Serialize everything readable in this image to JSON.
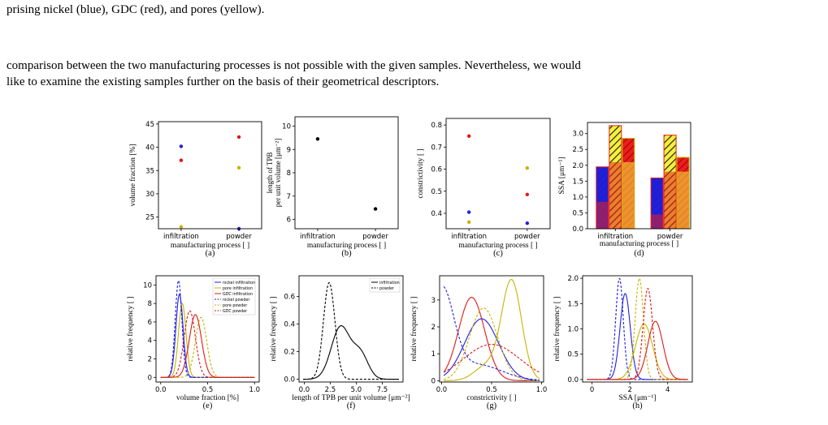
{
  "text": {
    "line1": "prising nickel (blue), GDC (red), and pores (yellow).",
    "line2": "comparison between the two manufacturing processes is not possible with the given samples. Nevertheless, we would",
    "line3": "like to examine the existing samples further on the basis of their geometrical descriptors."
  },
  "colors": {
    "nickel": "#1f1fe6",
    "pore": "#c8b400",
    "gdc": "#e01818",
    "black": "#000000",
    "bar_yellow": "#f5f03c",
    "bar_blue": "#2020d8",
    "bar_red": "#e8201e"
  },
  "chart_data": [
    {
      "id": "a",
      "type": "scatter",
      "caption": "(a)",
      "categories": [
        "infiltration",
        "powder"
      ],
      "xlabel": "manufacturing process [ ]",
      "ylabel": "volume fraction [%]",
      "ylim": [
        22.5,
        45.5
      ],
      "yticks": [
        25,
        30,
        35,
        40,
        45
      ],
      "series": [
        {
          "name": "nickel",
          "color": "#1f1fe6",
          "values": [
            40.2,
            22.5
          ]
        },
        {
          "name": "GDC",
          "color": "#e01818",
          "values": [
            37.2,
            42.2
          ]
        },
        {
          "name": "pores",
          "color": "#c8b400",
          "values": [
            22.9,
            35.6
          ]
        }
      ]
    },
    {
      "id": "b",
      "type": "scatter",
      "caption": "(b)",
      "categories": [
        "infiltration",
        "powder"
      ],
      "xlabel": "manufacturing process [ ]",
      "ylabel": "length of TPB per unit volume [μm⁻²]",
      "ylim": [
        5.6,
        10.4
      ],
      "yticks": [
        6,
        7,
        8,
        9,
        10
      ],
      "series": [
        {
          "color": "#000000",
          "values": [
            9.45,
            6.45
          ]
        }
      ]
    },
    {
      "id": "c",
      "type": "scatter",
      "caption": "(c)",
      "categories": [
        "infiltration",
        "powder"
      ],
      "xlabel": "manufacturing process [ ]",
      "ylabel": "constrictivity [ ]",
      "ylim": [
        0.33,
        0.83
      ],
      "yticks": [
        0.4,
        0.5,
        0.6,
        0.7,
        0.8
      ],
      "series": [
        {
          "color": "#e01818",
          "values": [
            0.75,
            0.485
          ]
        },
        {
          "color": "#1f1fe6",
          "values": [
            0.405,
            0.355
          ]
        },
        {
          "color": "#c8b400",
          "values": [
            0.36,
            0.605
          ]
        }
      ]
    },
    {
      "id": "d",
      "type": "bar",
      "caption": "(d)",
      "categories": [
        "infiltration",
        "powder"
      ],
      "xlabel": "manufacturing process [ ]",
      "ylabel": "SSA [μm⁻¹]",
      "ylim": [
        0,
        3.35
      ],
      "yticks": [
        0.0,
        0.5,
        1.0,
        1.5,
        2.0,
        2.5,
        3.0
      ],
      "bars": [
        {
          "cat": 0,
          "slot": 0,
          "total": 1.95,
          "inner": 0.85,
          "hatch": "#2020d8",
          "innerColor": "#e8201e"
        },
        {
          "cat": 0,
          "slot": 1,
          "total": 3.25,
          "inner": 2.1,
          "hatch": "#f5f03c",
          "innerColor": "#e8201e"
        },
        {
          "cat": 0,
          "slot": 2,
          "total": 2.85,
          "inner": 2.1,
          "hatch": "#e8201e",
          "innerColor": "#f5f03c"
        },
        {
          "cat": 1,
          "slot": 0,
          "total": 1.6,
          "inner": 0.45,
          "hatch": "#2020d8",
          "innerColor": "#e8201e"
        },
        {
          "cat": 1,
          "slot": 1,
          "total": 2.95,
          "inner": 1.8,
          "hatch": "#f5f03c",
          "innerColor": "#e8201e"
        },
        {
          "cat": 1,
          "slot": 2,
          "total": 2.25,
          "inner": 1.8,
          "hatch": "#e8201e",
          "innerColor": "#f5f03c"
        }
      ]
    },
    {
      "id": "e",
      "type": "line",
      "caption": "(e)",
      "xlabel": "volume fraction [%]",
      "ylabel": "relative frequency [ ]",
      "xlim": [
        -0.05,
        1.05
      ],
      "ylim": [
        -0.5,
        11
      ],
      "xticks": [
        0.0,
        0.5,
        1.0
      ],
      "yticks": [
        0,
        2,
        4,
        6,
        8,
        10
      ],
      "series": [
        {
          "name": "nickel infiltration",
          "color": "#1f1fe6",
          "dash": false,
          "peaks": [
            {
              "mu": 0.2,
              "sigma": 0.038,
              "amp": 9.0
            }
          ]
        },
        {
          "name": "pore infiltration",
          "color": "#c8b400",
          "dash": false,
          "peaks": [
            {
              "mu": 0.23,
              "sigma": 0.04,
              "amp": 8.0
            }
          ]
        },
        {
          "name": "GDC infiltration",
          "color": "#e01818",
          "dash": false,
          "peaks": [
            {
              "mu": 0.37,
              "sigma": 0.065,
              "amp": 6.8
            }
          ]
        },
        {
          "name": "nickel powder",
          "color": "#1f1fe6",
          "dash": true,
          "peaks": [
            {
              "mu": 0.19,
              "sigma": 0.035,
              "amp": 10.5
            }
          ]
        },
        {
          "name": "pore powder",
          "color": "#c8b400",
          "dash": true,
          "peaks": [
            {
              "mu": 0.43,
              "sigma": 0.06,
              "amp": 6.5
            }
          ]
        },
        {
          "name": "GDC powder",
          "color": "#e01818",
          "dash": true,
          "peaks": [
            {
              "mu": 0.31,
              "sigma": 0.06,
              "amp": 7.2
            }
          ]
        }
      ]
    },
    {
      "id": "f",
      "type": "line",
      "caption": "(f)",
      "xlabel": "length of TPB per unit volume [μm⁻²]",
      "ylabel": "relative frequency [ ]",
      "xlim": [
        -0.5,
        9.5
      ],
      "ylim": [
        -0.02,
        0.75
      ],
      "xticks": [
        0.0,
        2.5,
        5.0,
        7.5
      ],
      "yticks": [
        0.0,
        0.2,
        0.4,
        0.6
      ],
      "series": [
        {
          "name": "infiltration",
          "color": "#000000",
          "dash": false,
          "peaks": [
            {
              "mu": 3.5,
              "sigma": 0.9,
              "amp": 0.38
            },
            {
              "mu": 5.4,
              "sigma": 0.75,
              "amp": 0.18
            }
          ]
        },
        {
          "name": "powder",
          "color": "#000000",
          "dash": true,
          "peaks": [
            {
              "mu": 2.4,
              "sigma": 0.55,
              "amp": 0.7
            }
          ]
        }
      ]
    },
    {
      "id": "g",
      "type": "line",
      "caption": "(g)",
      "xlabel": "constrictivity [ ]",
      "ylabel": "relative frequency [ ]",
      "xlim": [
        -0.02,
        1.02
      ],
      "ylim": [
        -0.05,
        3.9
      ],
      "xticks": [
        0.0,
        0.5,
        1.0
      ],
      "yticks": [
        0,
        1,
        2,
        3
      ],
      "series": [
        {
          "color": "#e01818",
          "dash": false,
          "peaks": [
            {
              "mu": 0.3,
              "sigma": 0.13,
              "amp": 3.1
            }
          ]
        },
        {
          "color": "#1f1fe6",
          "dash": false,
          "peaks": [
            {
              "mu": 0.4,
              "sigma": 0.17,
              "amp": 2.3
            }
          ]
        },
        {
          "color": "#c8b400",
          "dash": false,
          "peaks": [
            {
              "mu": 0.7,
              "sigma": 0.1,
              "amp": 3.7
            },
            {
              "mu": 0.45,
              "sigma": 0.12,
              "amp": 0.55
            }
          ]
        },
        {
          "color": "#1f1fe6",
          "dash": true,
          "peaks": [
            {
              "mu": 0.0,
              "sigma": 0.12,
              "amp": 3.3
            },
            {
              "mu": 0.35,
              "sigma": 0.25,
              "amp": 0.6
            }
          ]
        },
        {
          "color": "#c8b400",
          "dash": true,
          "peaks": [
            {
              "mu": 0.42,
              "sigma": 0.14,
              "amp": 2.7
            }
          ]
        },
        {
          "color": "#e01818",
          "dash": true,
          "peaks": [
            {
              "mu": 0.5,
              "sigma": 0.28,
              "amp": 1.35
            }
          ]
        }
      ]
    },
    {
      "id": "h",
      "type": "line",
      "caption": "(h)",
      "xlabel": "SSA [μm⁻¹]",
      "ylabel": "relative frequency [ ]",
      "xlim": [
        -0.5,
        5.3
      ],
      "ylim": [
        -0.05,
        2.05
      ],
      "xticks": [
        0,
        2,
        4
      ],
      "yticks": [
        0.0,
        0.5,
        1.0,
        1.5,
        2.0
      ],
      "series": [
        {
          "color": "#1f1fe6",
          "dash": true,
          "peaks": [
            {
              "mu": 1.45,
              "sigma": 0.2,
              "amp": 2.0
            }
          ]
        },
        {
          "color": "#1f1fe6",
          "dash": false,
          "peaks": [
            {
              "mu": 1.75,
              "sigma": 0.27,
              "amp": 1.7
            }
          ]
        },
        {
          "color": "#c8b400",
          "dash": true,
          "peaks": [
            {
              "mu": 2.5,
              "sigma": 0.22,
              "amp": 2.0
            }
          ]
        },
        {
          "color": "#c8b400",
          "dash": false,
          "peaks": [
            {
              "mu": 2.75,
              "sigma": 0.45,
              "amp": 1.1
            }
          ]
        },
        {
          "color": "#e01818",
          "dash": true,
          "peaks": [
            {
              "mu": 2.95,
              "sigma": 0.25,
              "amp": 1.8
            }
          ]
        },
        {
          "color": "#e01818",
          "dash": false,
          "peaks": [
            {
              "mu": 3.35,
              "sigma": 0.4,
              "amp": 1.15
            }
          ]
        }
      ]
    }
  ]
}
